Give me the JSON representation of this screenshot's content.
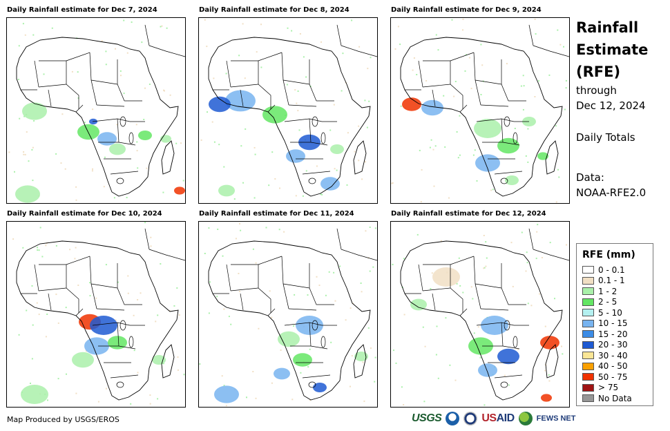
{
  "panels": [
    {
      "title": "Daily Rainfall estimate for Dec 7, 2024"
    },
    {
      "title": "Daily Rainfall estimate for Dec 8, 2024"
    },
    {
      "title": "Daily Rainfall estimate for Dec 9, 2024"
    },
    {
      "title": "Daily Rainfall estimate for Dec 10, 2024"
    },
    {
      "title": "Daily Rainfall estimate for Dec 11, 2024"
    },
    {
      "title": "Daily Rainfall estimate for Dec 12, 2024"
    }
  ],
  "header": {
    "title_line1": "Rainfall",
    "title_line2": "Estimate",
    "title_line3": "(RFE)",
    "through_label": "through",
    "end_date": "Dec 12, 2024",
    "period_label": "Daily Totals",
    "data_label": "Data:",
    "data_source": "NOAA-RFE2.0"
  },
  "legend": {
    "title": "RFE (mm)",
    "items": [
      {
        "label": "0 - 0.1",
        "color": "#ffffff"
      },
      {
        "label": "0.1 - 1",
        "color": "#f1dfc4"
      },
      {
        "label": "1 - 2",
        "color": "#aaf0aa"
      },
      {
        "label": "2 - 5",
        "color": "#64e664"
      },
      {
        "label": "5 - 10",
        "color": "#b4f0f0"
      },
      {
        "label": "10 - 15",
        "color": "#78b4f0"
      },
      {
        "label": "15 - 20",
        "color": "#3c8ce6"
      },
      {
        "label": "20 - 30",
        "color": "#1e5ad2"
      },
      {
        "label": "30 - 40",
        "color": "#fae696"
      },
      {
        "label": "40 - 50",
        "color": "#faa000"
      },
      {
        "label": "50 - 75",
        "color": "#f03200"
      },
      {
        "label": "> 75",
        "color": "#a01414"
      },
      {
        "label": "No Data",
        "color": "#969696"
      }
    ]
  },
  "footer": {
    "credit": "Map Produced by USGS/EROS",
    "logo_usgs": "USGS",
    "logo_usaid_a": "US",
    "logo_usaid_b": "AID",
    "logo_fews": "FEWS NET"
  }
}
